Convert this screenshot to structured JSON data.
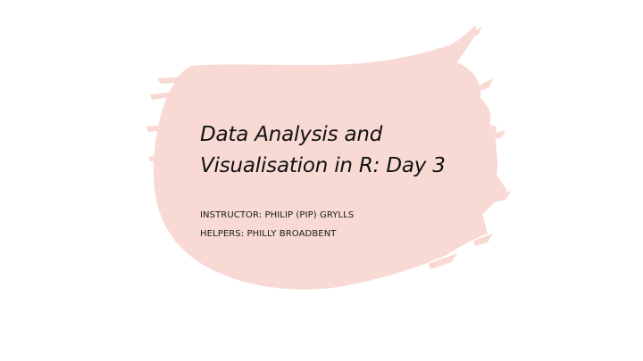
{
  "slide": {
    "title_line1": "Data Analysis and",
    "title_line2": "Visualisation in R: Day 3",
    "instructor": "INSTRUCTOR: PHILIP (PIP) GRYLLS",
    "helpers": "HELPERS: PHILLY BROADBENT"
  },
  "colors": {
    "background": "#ffffff",
    "brush": "#f8d9d3",
    "text": "#111111"
  }
}
